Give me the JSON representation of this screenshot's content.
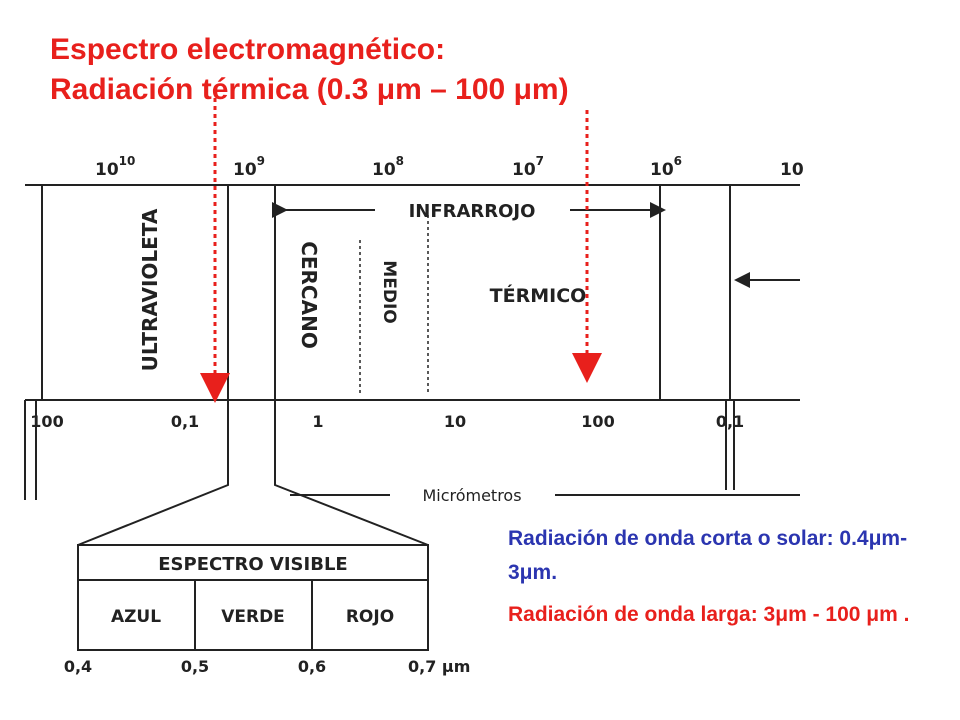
{
  "title": {
    "line1": "Espectro electromagnético:",
    "line2": "Radiación térmica (0.3 μm – 100 μm)"
  },
  "diagram": {
    "frequency_ticks": [
      {
        "base": "10",
        "exponent": "10"
      },
      {
        "base": "10",
        "exponent": "9"
      },
      {
        "base": "10",
        "exponent": "8"
      },
      {
        "base": "10",
        "exponent": "7"
      },
      {
        "base": "10",
        "exponent": "6"
      },
      {
        "base": "10"
      }
    ],
    "regions": {
      "ultraviolet": "ULTRAVIOLETA",
      "infrared": "INFRARROJO",
      "near": "CERCANO",
      "middle": "MEDIO",
      "thermal": "TÉRMICO"
    },
    "wavelength_ticks": [
      "100",
      "0,1",
      "1",
      "10",
      "100",
      "0,1"
    ],
    "unit": "Micrómetros",
    "visible": {
      "title": "ESPECTRO VISIBLE",
      "bands": [
        "AZUL",
        "VERDE",
        "ROJO"
      ],
      "ticks": [
        "0,4",
        "0,5",
        "0,6",
        "0,7 μm"
      ]
    }
  },
  "notes": [
    {
      "text": "Radiación de onda corta o solar: 0.4μm-3μm.",
      "color": "#2b35b0"
    },
    {
      "text": "Radiación de onda larga: 3μm - 100 μm .",
      "color": "#e8201c"
    }
  ]
}
